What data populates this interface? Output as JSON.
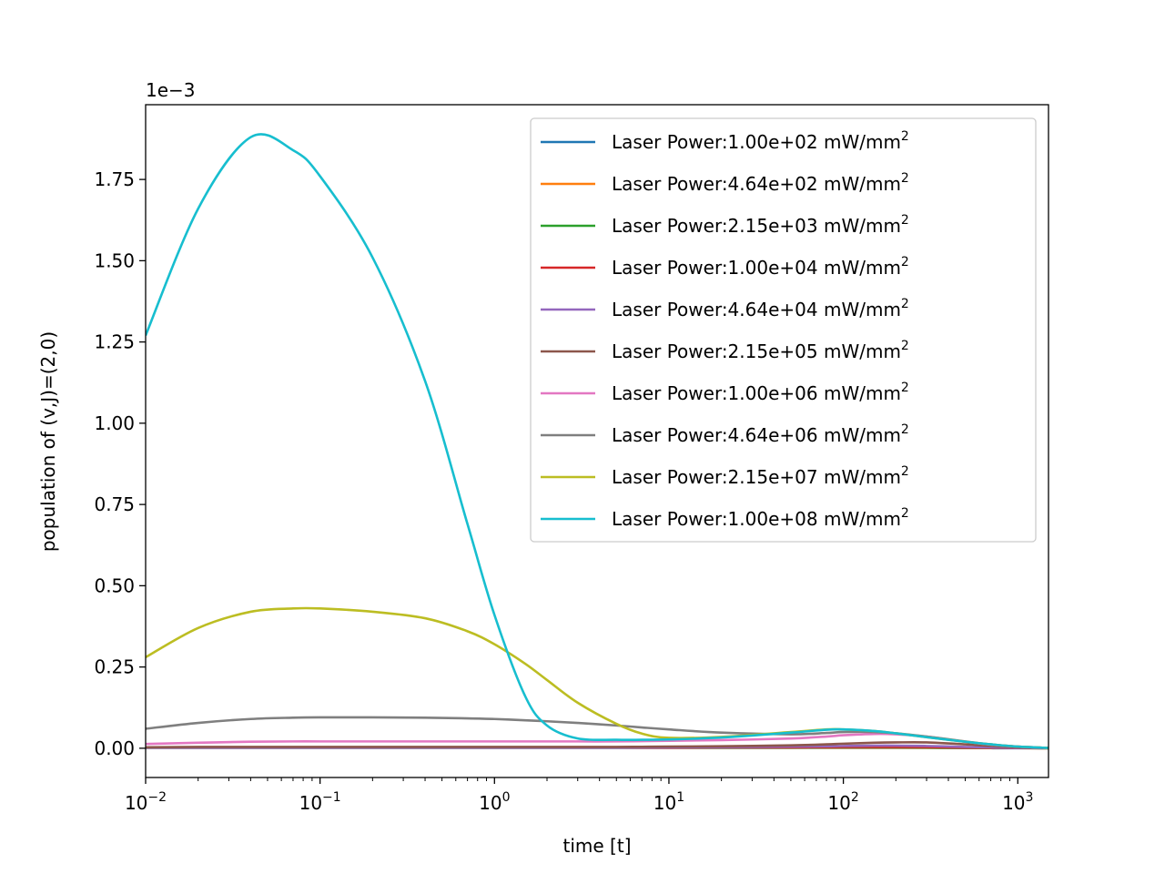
{
  "chart_data": {
    "type": "line",
    "title": "",
    "xlabel": "time [t]",
    "ylabel": "population of (v,J)=(2,0)",
    "y_offset_label": "1e−3",
    "x_scale": "log",
    "xlim": [
      0.01,
      1500
    ],
    "ylim": [
      -9e-05,
      0.00198
    ],
    "grid": false,
    "legend_position": "top-right",
    "x_ticks": [
      {
        "value": 0.01,
        "base": "10",
        "exp": "−2"
      },
      {
        "value": 0.1,
        "base": "10",
        "exp": "−1"
      },
      {
        "value": 1,
        "base": "10",
        "exp": "0"
      },
      {
        "value": 10,
        "base": "10",
        "exp": "1"
      },
      {
        "value": 100,
        "base": "10",
        "exp": "2"
      },
      {
        "value": 1000,
        "base": "10",
        "exp": "3"
      }
    ],
    "y_ticks": [
      {
        "value": 0.0,
        "label": "0.00"
      },
      {
        "value": 0.00025,
        "label": "0.25"
      },
      {
        "value": 0.0005,
        "label": "0.50"
      },
      {
        "value": 0.00075,
        "label": "0.75"
      },
      {
        "value": 0.001,
        "label": "1.00"
      },
      {
        "value": 0.00125,
        "label": "1.25"
      },
      {
        "value": 0.0015,
        "label": "1.50"
      },
      {
        "value": 0.00175,
        "label": "1.75"
      }
    ],
    "x": [
      0.01,
      0.02,
      0.04,
      0.07,
      0.1,
      0.2,
      0.4,
      0.7,
      1,
      1.5,
      2,
      3,
      5,
      7,
      10,
      20,
      50,
      80,
      100,
      150,
      200,
      300,
      500,
      700,
      1000,
      1500
    ],
    "series": [
      {
        "name": "Laser Power:1.00e+02 mW/mm",
        "sup": "2",
        "color": "#1f77b4",
        "values": [
          1e-06,
          1e-06,
          1e-06,
          1e-06,
          1e-06,
          1e-06,
          1e-06,
          1e-06,
          1e-06,
          1e-06,
          1e-06,
          1e-06,
          1e-06,
          1e-06,
          1e-06,
          1e-06,
          1e-06,
          1e-06,
          1e-06,
          1e-06,
          1e-06,
          1e-06,
          5e-07,
          3e-07,
          2e-07,
          1e-07
        ]
      },
      {
        "name": "Laser Power:4.64e+02 mW/mm",
        "sup": "2",
        "color": "#ff7f0e",
        "values": [
          1.5e-06,
          1.5e-06,
          1.5e-06,
          1.5e-06,
          1.5e-06,
          1.5e-06,
          1.5e-06,
          1.5e-06,
          1.5e-06,
          1.5e-06,
          1.5e-06,
          1.5e-06,
          1.5e-06,
          1.5e-06,
          1.5e-06,
          1.5e-06,
          1.5e-06,
          2e-06,
          2e-06,
          2e-06,
          2e-06,
          1.5e-06,
          1e-06,
          6e-07,
          3e-07,
          1e-07
        ]
      },
      {
        "name": "Laser Power:2.15e+03 mW/mm",
        "sup": "2",
        "color": "#2ca02c",
        "values": [
          2e-06,
          2e-06,
          2e-06,
          2e-06,
          2e-06,
          2e-06,
          2e-06,
          2e-06,
          2e-06,
          2e-06,
          2e-06,
          2e-06,
          2e-06,
          2e-06,
          2e-06,
          2e-06,
          2.5e-06,
          3e-06,
          3e-06,
          3e-06,
          3e-06,
          2.5e-06,
          1.5e-06,
          1e-06,
          5e-07,
          2e-07
        ]
      },
      {
        "name": "Laser Power:1.00e+04 mW/mm",
        "sup": "2",
        "color": "#d62728",
        "values": [
          2e-06,
          2e-06,
          2e-06,
          2e-06,
          2e-06,
          2e-06,
          2e-06,
          2e-06,
          2e-06,
          2e-06,
          2e-06,
          2e-06,
          2e-06,
          2e-06,
          2e-06,
          2.5e-06,
          3e-06,
          3.5e-06,
          4e-06,
          4e-06,
          4e-06,
          3.5e-06,
          2e-06,
          1.2e-06,
          6e-07,
          2e-07
        ]
      },
      {
        "name": "Laser Power:4.64e+04 mW/mm",
        "sup": "2",
        "color": "#9467bd",
        "values": [
          2e-06,
          2e-06,
          2e-06,
          2e-06,
          2e-06,
          2e-06,
          2e-06,
          2e-06,
          2e-06,
          2e-06,
          2e-06,
          2e-06,
          2e-06,
          2.5e-06,
          3e-06,
          3.5e-06,
          5e-06,
          6e-06,
          7e-06,
          8e-06,
          8e-06,
          7e-06,
          4e-06,
          2.5e-06,
          1.2e-06,
          4e-07
        ]
      },
      {
        "name": "Laser Power:2.15e+05 mW/mm",
        "sup": "2",
        "color": "#8c564b",
        "values": [
          3e-06,
          4e-06,
          4e-06,
          4e-06,
          4e-06,
          4e-06,
          4e-06,
          4e-06,
          4e-06,
          4e-06,
          4e-06,
          4e-06,
          4e-06,
          4.5e-06,
          5e-06,
          6e-06,
          9e-06,
          1.2e-05,
          1.4e-05,
          1.7e-05,
          1.8e-05,
          1.8e-05,
          1.2e-05,
          7e-06,
          3e-06,
          1e-06
        ]
      },
      {
        "name": "Laser Power:1.00e+06 mW/mm",
        "sup": "2",
        "color": "#e377c2",
        "values": [
          1.3e-05,
          1.7e-05,
          2e-05,
          2.1e-05,
          2.1e-05,
          2.1e-05,
          2.1e-05,
          2.1e-05,
          2.1e-05,
          2.1e-05,
          2.1e-05,
          2.1e-05,
          2.1e-05,
          2.2e-05,
          2.3e-05,
          2.5e-05,
          3e-05,
          3.6e-05,
          4e-05,
          4.4e-05,
          4.3e-05,
          3.6e-05,
          2e-05,
          1.1e-05,
          5e-06,
          1e-06
        ]
      },
      {
        "name": "Laser Power:4.64e+06 mW/mm",
        "sup": "2",
        "color": "#7f7f7f",
        "values": [
          6e-05,
          7.8e-05,
          9e-05,
          9.4e-05,
          9.5e-05,
          9.5e-05,
          9.4e-05,
          9.2e-05,
          9e-05,
          8.6e-05,
          8.3e-05,
          7.8e-05,
          7e-05,
          6.4e-05,
          5.8e-05,
          4.8e-05,
          4.3e-05,
          4.7e-05,
          5e-05,
          5e-05,
          4.6e-05,
          3.6e-05,
          2.1e-05,
          1.2e-05,
          5e-06,
          1e-06
        ]
      },
      {
        "name": "Laser Power:2.15e+07 mW/mm",
        "sup": "2",
        "color": "#bcbd22",
        "values": [
          0.00028,
          0.00037,
          0.00042,
          0.00043,
          0.00043,
          0.00042,
          0.0004,
          0.00036,
          0.00032,
          0.00026,
          0.00021,
          0.00014,
          7.5e-05,
          4.5e-05,
          3.2e-05,
          3.5e-05,
          5e-05,
          5.8e-05,
          5.8e-05,
          5.3e-05,
          4.6e-05,
          3.4e-05,
          2e-05,
          1.2e-05,
          5e-06,
          1e-06
        ]
      },
      {
        "name": "Laser Power:1.00e+08 mW/mm",
        "sup": "2",
        "color": "#17becf",
        "values": [
          0.00127,
          0.00166,
          0.00188,
          0.00184,
          0.00176,
          0.00151,
          0.00113,
          0.00069,
          0.00041,
          0.00016,
          7e-05,
          3e-05,
          2.6e-05,
          2.6e-05,
          2.7e-05,
          3.3e-05,
          4.8e-05,
          5.7e-05,
          5.8e-05,
          5.3e-05,
          4.6e-05,
          3.4e-05,
          2e-05,
          1.2e-05,
          5e-06,
          1e-06
        ]
      }
    ]
  }
}
